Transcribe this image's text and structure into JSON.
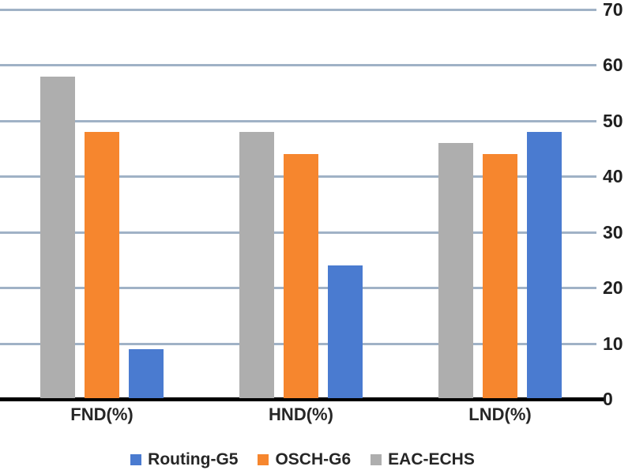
{
  "chart_data": {
    "type": "bar",
    "categories": [
      "FND(%)",
      "HND(%)",
      "LND(%)"
    ],
    "series": [
      {
        "name": "Routing-G5",
        "color": "#4a7bd0",
        "values": [
          9,
          24,
          48
        ]
      },
      {
        "name": "OSCH-G6",
        "color": "#f6862e",
        "values": [
          48,
          44,
          44
        ]
      },
      {
        "name": "EAC-ECHS",
        "color": "#aeaeae",
        "values": [
          58,
          48,
          46
        ]
      }
    ],
    "plot_order": [
      "EAC-ECHS",
      "OSCH-G6",
      "Routing-G5"
    ],
    "ylim": [
      0,
      70
    ],
    "yticks": [
      0,
      10,
      20,
      30,
      40,
      50,
      60,
      70
    ],
    "y_axis_side": "right",
    "grid": true,
    "legend_position": "bottom",
    "title": "",
    "xlabel": "",
    "ylabel": ""
  },
  "colors": {
    "gridline": "#a0b2c6",
    "axis_line": "#000000",
    "text": "#262626",
    "background": "#ffffff"
  }
}
